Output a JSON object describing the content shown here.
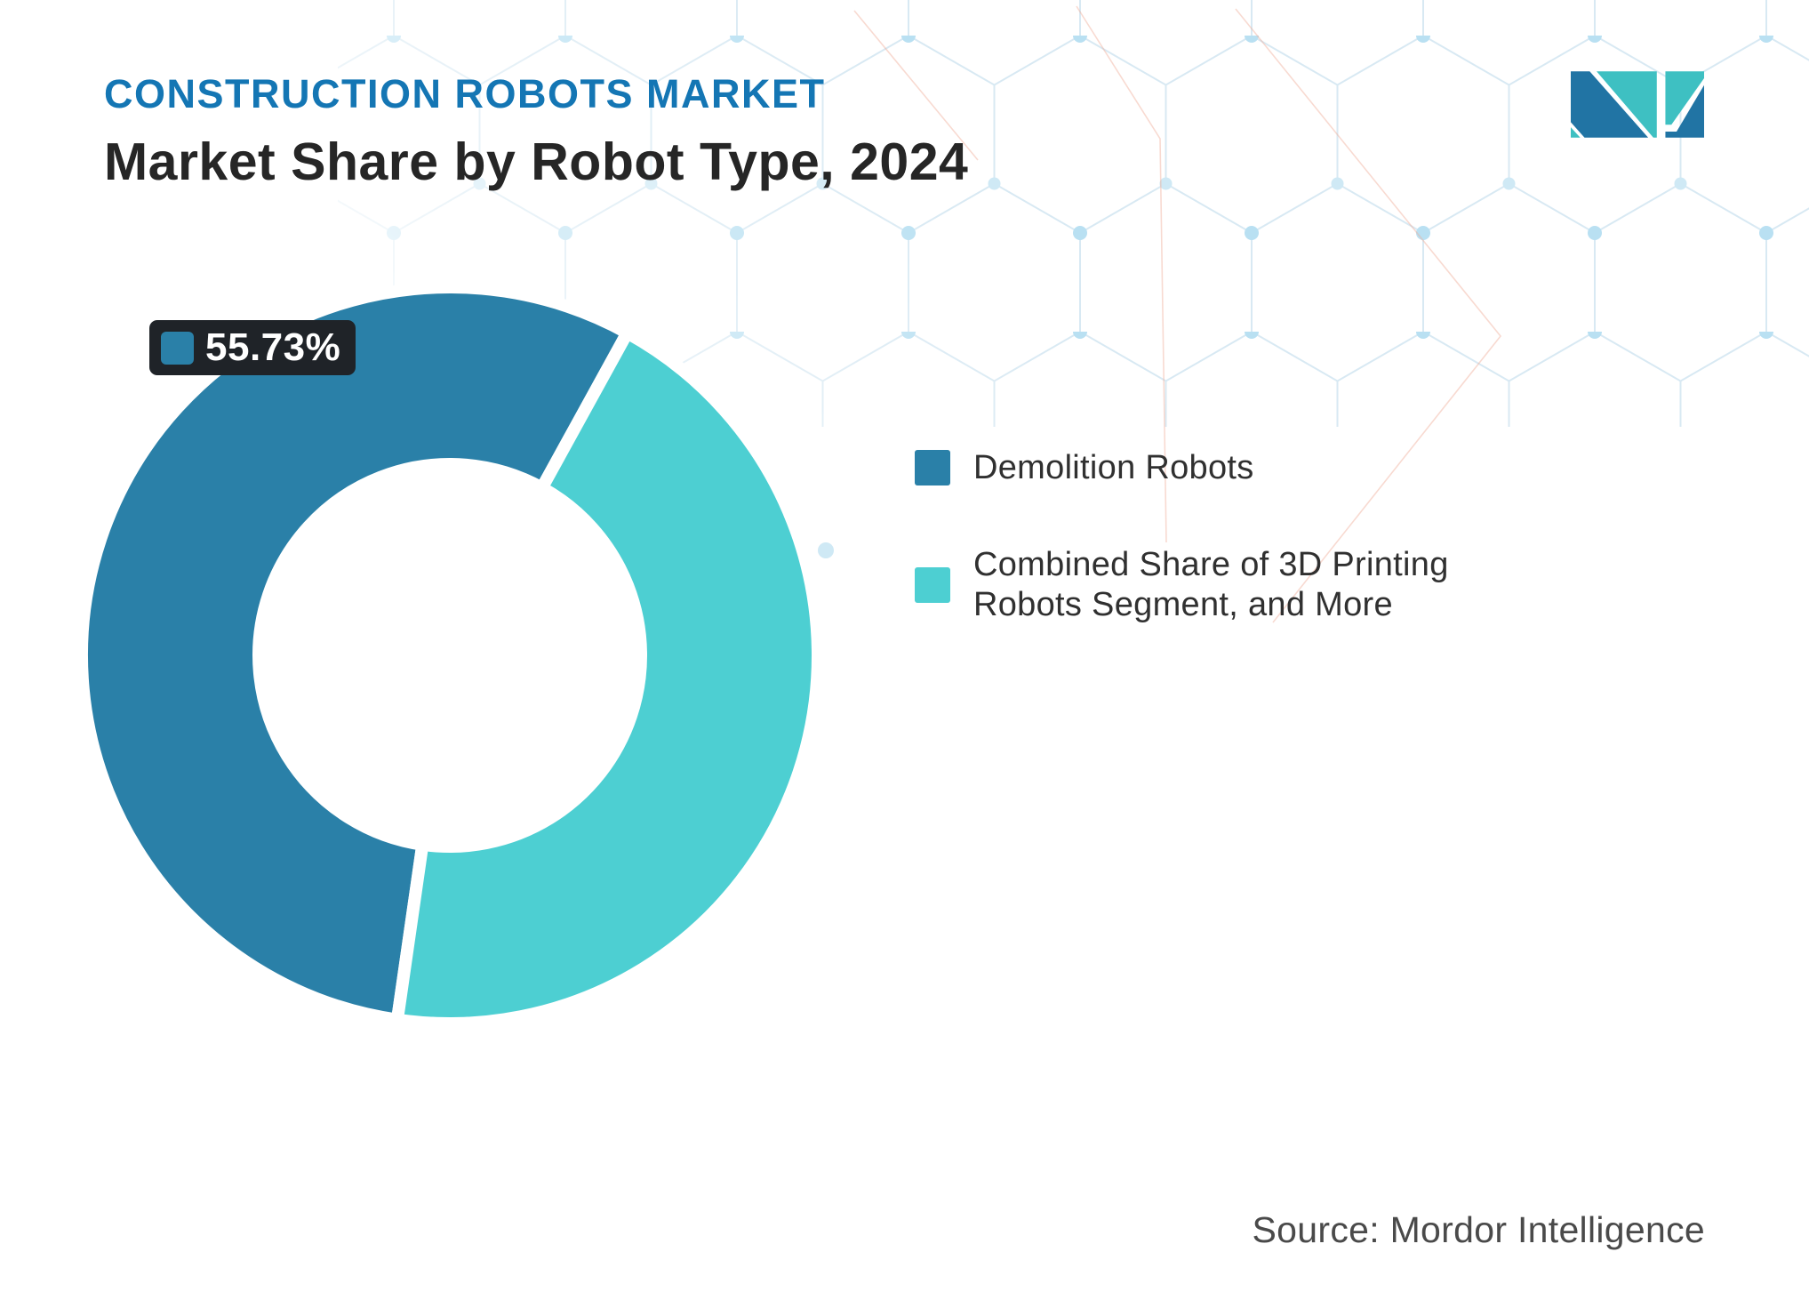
{
  "header": {
    "kicker": "CONSTRUCTION ROBOTS MARKET",
    "title": "Market Share by Robot Type, 2024"
  },
  "logo": {
    "name": "mordor-intelligence-logo",
    "blue": "#2174A4",
    "teal": "#3EC0C2"
  },
  "chart_data": {
    "type": "pie",
    "subtype": "donut",
    "title": "Market Share by Robot Type, 2024",
    "slices": [
      {
        "name": "Demolition Robots",
        "value": 55.73,
        "label": "55.73%",
        "color": "#2A80A8"
      },
      {
        "name": "Combined Share of 3D Printing Robots Segment, and More",
        "value": 44.27,
        "color": "#4DCFD2"
      }
    ],
    "start_angle_deg": 188.2,
    "inner_radius_ratio": 0.52,
    "legend_position": "right",
    "annotations": [
      {
        "text": "55.73%",
        "slice": "Demolition Robots",
        "position": "top-left"
      }
    ]
  },
  "label_55": {
    "text": "55.73%",
    "swatch_color": "#2A80A8",
    "background": "#1F2328"
  },
  "legend": {
    "items": [
      {
        "label": "Demolition Robots",
        "color": "#2A80A8"
      },
      {
        "label": "Combined Share of 3D Printing\nRobots Segment, and More",
        "color": "#4DCFD2"
      }
    ]
  },
  "footer": {
    "source": "Source: Mordor Intelligence"
  },
  "colors": {
    "brand_blue": "#1476B4",
    "ink": "#262626",
    "label_bg": "#1F2328",
    "chart_blue": "#2A80A8",
    "chart_teal": "#4DCFD2",
    "pattern_line": "#D8E9F3",
    "pattern_dot": "#B9E0F2",
    "pattern_red": "#F0AE9A"
  }
}
